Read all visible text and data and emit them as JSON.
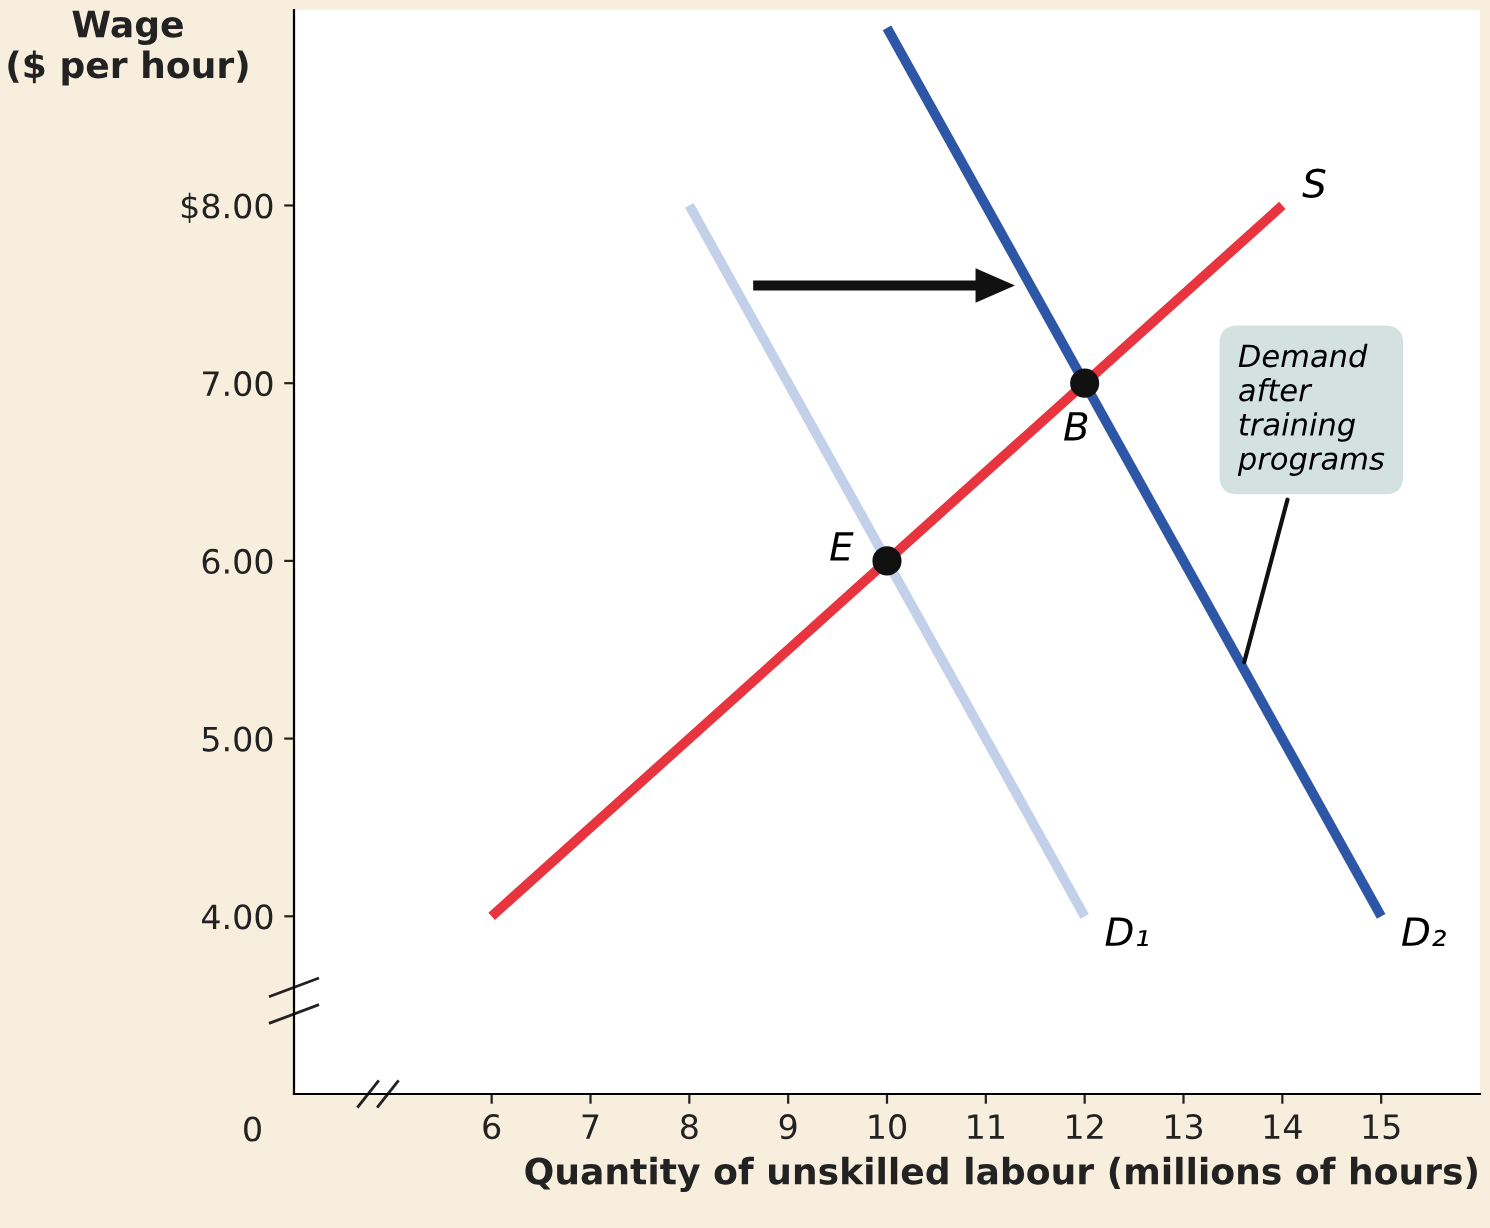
{
  "chart_data": {
    "type": "line",
    "xlabel": "Quantity of unskilled labour (millions of hours)",
    "ylabel": "Wage\n($ per hour)",
    "xlim": [
      4,
      16
    ],
    "ylim": [
      3,
      9.1
    ],
    "xticks": [
      6,
      7,
      8,
      9,
      10,
      11,
      12,
      13,
      14,
      15
    ],
    "yticks": [
      {
        "value": 4,
        "label": "4.00"
      },
      {
        "value": 5,
        "label": "5.00"
      },
      {
        "value": 6,
        "label": "6.00"
      },
      {
        "value": 7,
        "label": "7.00"
      },
      {
        "value": 8,
        "label": "$8.00"
      }
    ],
    "grid": false,
    "legend": false,
    "line_style": "solid",
    "series": [
      {
        "name": "S",
        "color": "#e8343f",
        "x": [
          6,
          14
        ],
        "values": [
          4,
          8
        ]
      },
      {
        "name": "D₁",
        "color": "#c2d0ea",
        "x": [
          8,
          12
        ],
        "values": [
          8,
          4
        ]
      },
      {
        "name": "D₂",
        "color": "#2e56a6",
        "x": [
          10,
          15
        ],
        "values": [
          9,
          4
        ]
      },
      {
        "type": "scatter",
        "marker": "circle",
        "color": "#111111",
        "x": [
          10,
          12
        ],
        "values": [
          6,
          7
        ]
      }
    ],
    "annotations": [
      "0",
      {
        "text": "E",
        "x": 10,
        "y": 6
      },
      {
        "text": "B",
        "x": 12,
        "y": 7
      },
      {
        "text": "Demand\nafter\ntraining\nprograms",
        "x": 13.6,
        "y": 5.4
      }
    ]
  }
}
